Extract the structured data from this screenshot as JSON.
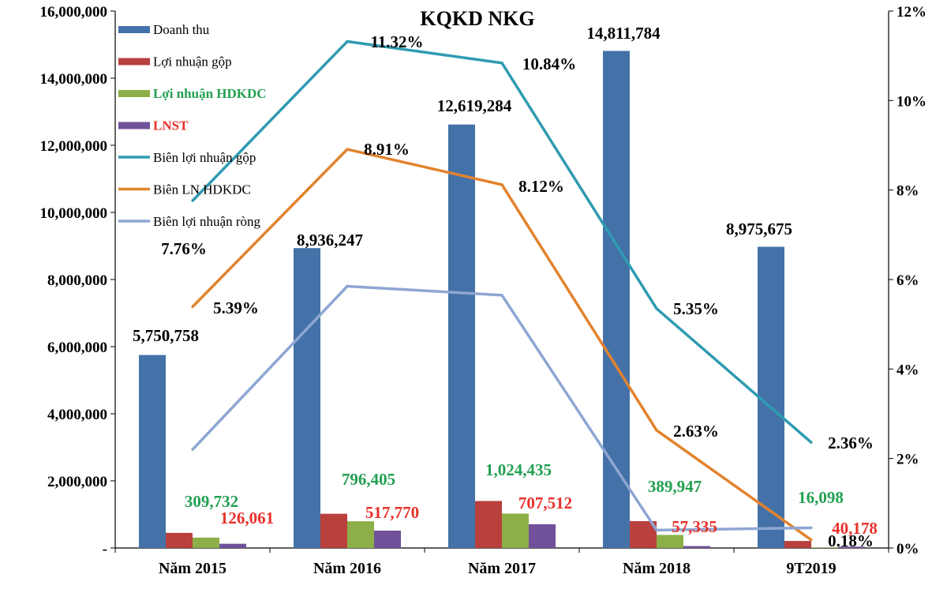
{
  "chart_data": {
    "type": "bar",
    "title": "KQKD NKG",
    "categories": [
      "Năm 2015",
      "Năm 2016",
      "Năm 2017",
      "Năm 2018",
      "9T2019"
    ],
    "y_left": {
      "min": 0,
      "max": 16000000,
      "step": 2000000,
      "ticks": [
        "-",
        "2,000,000",
        "4,000,000",
        "6,000,000",
        "8,000,000",
        "10,000,000",
        "12,000,000",
        "14,000,000",
        "16,000,000"
      ]
    },
    "y_right": {
      "min": 0,
      "max": 12,
      "step": 2,
      "ticks": [
        "0%",
        "2%",
        "4%",
        "6%",
        "8%",
        "10%",
        "12%"
      ]
    },
    "bar_series": [
      {
        "name": "Doanh thu",
        "color": "#4472A8",
        "legend_color": "#000000",
        "values": [
          5750758,
          8936247,
          12619284,
          14811784,
          8975675
        ],
        "labels": [
          "5,750,758",
          "8,936,247",
          "12,619,284",
          "14,811,784",
          "8,975,675"
        ],
        "label_color": "#000000"
      },
      {
        "name": "Lợi nhuận gộp",
        "color": "#B9403D",
        "legend_color": "#000000",
        "values": [
          450000,
          1020000,
          1400000,
          800000,
          210000
        ],
        "labels": [
          "",
          "",
          "",
          "",
          ""
        ],
        "label_color": "#000000"
      },
      {
        "name": "Lợi nhuận  HDKDC",
        "color": "#8DAF47",
        "legend_color": "#22A050",
        "values": [
          309732,
          796405,
          1024435,
          389947,
          16098
        ],
        "labels": [
          "309,732",
          "796,405",
          "1,024,435",
          "389,947",
          "16,098"
        ],
        "label_color": "#22A050"
      },
      {
        "name": "LNST",
        "color": "#70519A",
        "legend_color": "#E8302A",
        "values": [
          126061,
          517770,
          707512,
          57335,
          40178
        ],
        "labels": [
          "126,061",
          "517,770",
          "707,512",
          "57,335",
          "40,178"
        ],
        "label_color": "#E8302A"
      }
    ],
    "line_series": [
      {
        "name": "Biên  lợi nhuận gộp",
        "color": "#2F9BB1",
        "values": [
          7.76,
          11.32,
          10.84,
          5.35,
          2.36
        ],
        "labels": [
          "7.76%",
          "11.32%",
          "10.84%",
          "5.35%",
          "2.36%"
        ]
      },
      {
        "name": "Biên LN HDKDC",
        "color": "#E2832E",
        "values": [
          5.39,
          8.91,
          8.12,
          2.63,
          0.18
        ],
        "labels": [
          "5.39%",
          "8.91%",
          "8.12%",
          "2.63%",
          "0.18%"
        ]
      },
      {
        "name": "Biên  lợi nhuận ròng",
        "color": "#8EA6D2",
        "values": [
          2.2,
          5.85,
          5.65,
          0.4,
          0.45
        ],
        "labels": [
          "",
          "",
          "",
          "",
          ""
        ]
      }
    ],
    "legend_position": "top-left"
  }
}
